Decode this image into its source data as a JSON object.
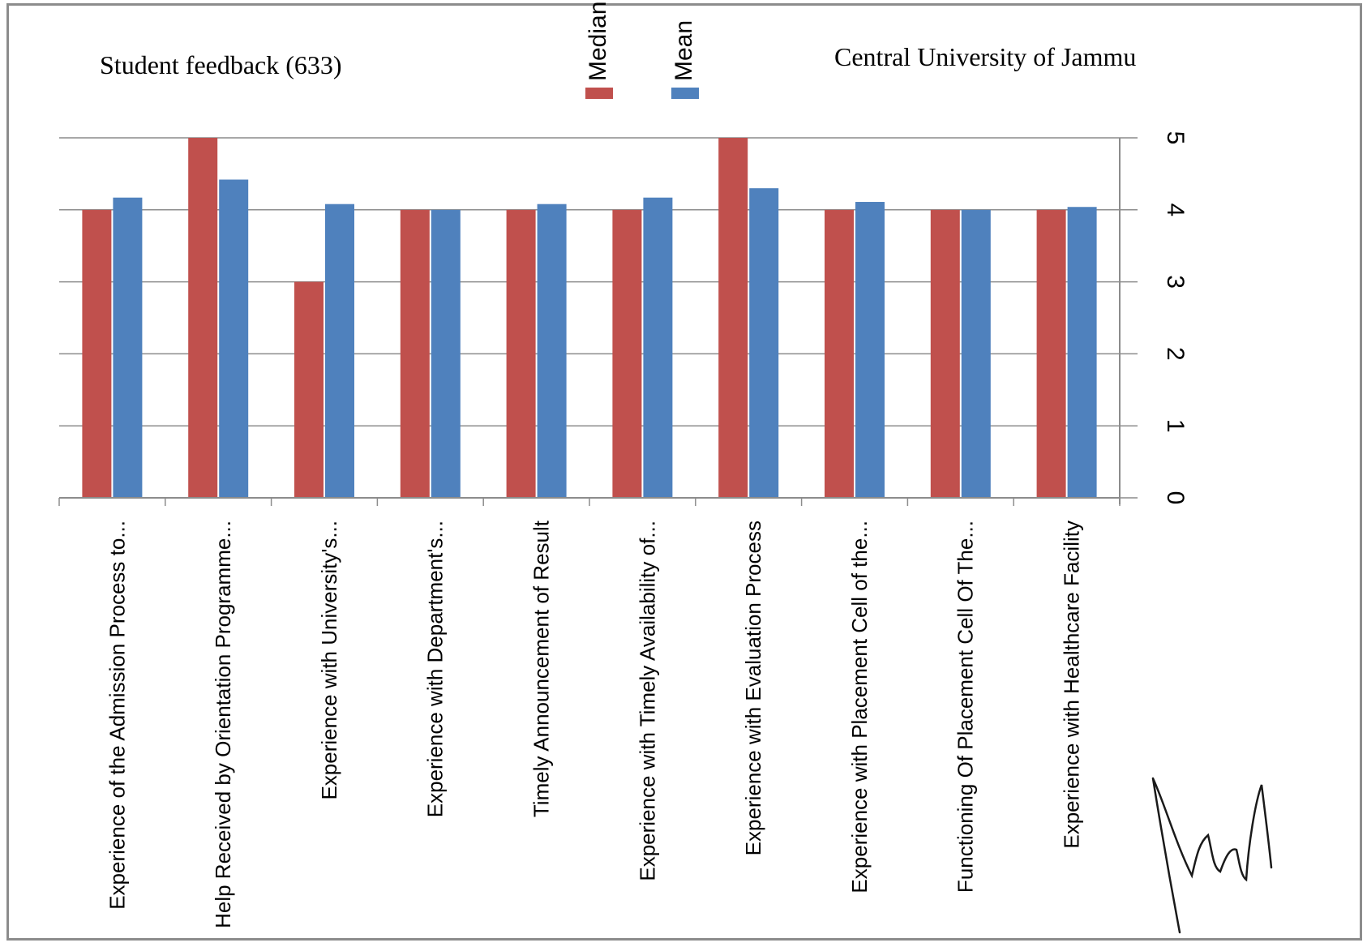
{
  "header": {
    "left_title": "Student feedback (633)",
    "right_title": "Central University of Jammu"
  },
  "colors": {
    "median": "#c0504d",
    "mean": "#4f81bd",
    "grid": "#8c8c8c"
  },
  "chart_data": {
    "type": "bar",
    "categories": [
      "Experience of the Admission Process to...",
      "Help Received by Orientation Programme...",
      "Experience with University's...",
      "Experience with Department's...",
      "Timely Announcement of Result",
      "Experience with Timely Availability of...",
      "Experience with Evaluation Process",
      "Experience with Placement Cell of the...",
      "Functioning Of Placement Cell Of The...",
      "Experience with Healthcare Facility"
    ],
    "series": [
      {
        "name": "Median",
        "values": [
          4,
          5,
          3,
          4,
          4,
          4,
          5,
          4,
          4,
          4
        ]
      },
      {
        "name": "Mean",
        "values": [
          4.17,
          4.42,
          4.08,
          4.0,
          4.08,
          4.17,
          4.3,
          4.11,
          4.0,
          4.04
        ]
      }
    ],
    "ylim": [
      0,
      5
    ],
    "yticks": [
      "0",
      "1",
      "2",
      "3",
      "4",
      "5"
    ],
    "grid": true,
    "legend_position": "top"
  }
}
